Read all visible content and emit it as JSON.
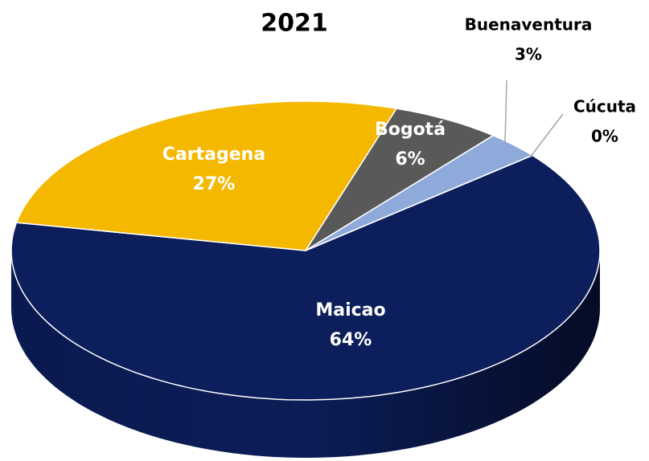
{
  "chart_data": {
    "type": "pie",
    "title": "2021",
    "categories": [
      "Maicao",
      "Cartagena",
      "Bogotá",
      "Buenaventura",
      "Cúcuta"
    ],
    "values": [
      64,
      27,
      6,
      3,
      0
    ],
    "value_labels": [
      "64%",
      "27%",
      "6%",
      "3%",
      "0%"
    ],
    "colors": [
      "#0c1e5b",
      "#f5b800",
      "#595959",
      "#8eaadb",
      "#c8c8c8"
    ]
  }
}
